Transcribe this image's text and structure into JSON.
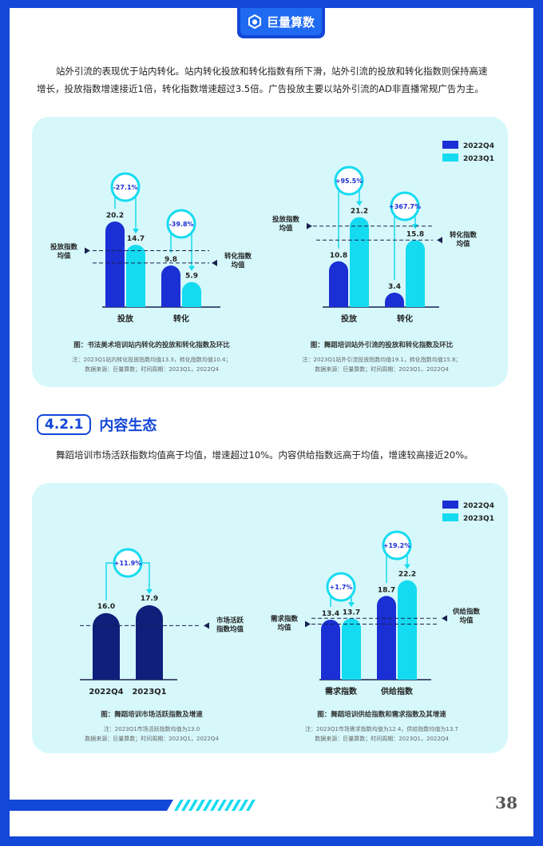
{
  "header": {
    "logo_text": "巨量算数",
    "logo_icon": "cube-logo-icon"
  },
  "intro_paragraph": [
    "站外引流的表现优于站内转化。站内转化投放和转化指数有所下滑，站外引流的投放和转化指数则保持高速",
    "增长，投放指数增速接近1倍，转化指数增速超过3.5倍。广告投放主要以站外引流的AD非直播常规广告为主。"
  ],
  "section": {
    "number": "4.2.1",
    "title": "内容生态"
  },
  "section_paragraph": "舞蹈培训市场活跃指数均值高于均值，增速超过10%。内容供给指数远高于均值，增速较高接近20%。",
  "legend": {
    "q4": "2022Q4",
    "q1": "2023Q1"
  },
  "colors": {
    "q4": "#1a2fd4",
    "q1": "#15dbf0",
    "dark": "#0f1f7a",
    "panel": "#d6f8fb"
  },
  "chart_data": [
    {
      "type": "bar",
      "categories": [
        "投放",
        "转化"
      ],
      "series": [
        {
          "name": "2022Q4",
          "values": [
            20.2,
            9.8
          ]
        },
        {
          "name": "2023Q1",
          "values": [
            14.7,
            5.9
          ]
        }
      ],
      "growth": [
        "-27.1%",
        "-39.8%"
      ],
      "avg_labels": {
        "left": "投放指数\n均值",
        "right": "转化指数\n均值"
      },
      "caption": "图：书法美术培训站内转化的投放和转化指数及环比",
      "note1": "注：2023Q1站内转化投放指数均值13.3，转化指数均值10.4；",
      "note2": "数据来源：巨量算数；时间周期：2023Q1，2022Q4"
    },
    {
      "type": "bar",
      "categories": [
        "投放",
        "转化"
      ],
      "series": [
        {
          "name": "2022Q4",
          "values": [
            10.8,
            3.4
          ]
        },
        {
          "name": "2023Q1",
          "values": [
            21.2,
            15.8
          ]
        }
      ],
      "growth": [
        "+95.5%",
        "+367.7%"
      ],
      "avg_labels": {
        "left": "投放指数\n均值",
        "right": "转化指数\n均值"
      },
      "caption": "图：舞蹈培训站外引流的投放和转化指数及环比",
      "note1": "注：2023Q1站外引流投放指数均值19.1，转化指数均值15.8；",
      "note2": "数据来源：巨量算数；时间周期：2023Q1，2022Q4"
    },
    {
      "type": "bar",
      "categories": [
        "2022Q4",
        "2023Q1"
      ],
      "values": [
        16.0,
        17.9
      ],
      "growth": [
        "+11.9%"
      ],
      "avg_labels": {
        "right": "市场活跃\n指数均值"
      },
      "caption": "图：舞蹈培训市场活跃指数及增速",
      "note1": "注：2023Q1市场活跃指数均值为13.0",
      "note2": "数据来源：巨量算数；时间周期：2023Q1，2022Q4"
    },
    {
      "type": "bar",
      "categories": [
        "需求指数",
        "供给指数"
      ],
      "series": [
        {
          "name": "2022Q4",
          "values": [
            13.4,
            18.7
          ]
        },
        {
          "name": "2023Q1",
          "values": [
            13.7,
            22.2
          ]
        }
      ],
      "growth": [
        "+1.7%",
        "+19.2%"
      ],
      "avg_labels": {
        "left": "需求指数\n均值",
        "right": "供给指数\n均值"
      },
      "caption": "图：舞蹈培训供给指数和需求指数及其增速",
      "note1": "注：2023Q1市场需求指数均值为12.4，供给指数均值为13.7",
      "note2": "数据来源：巨量算数；时间周期：2023Q1，2022Q4"
    }
  ],
  "page_number": "38"
}
